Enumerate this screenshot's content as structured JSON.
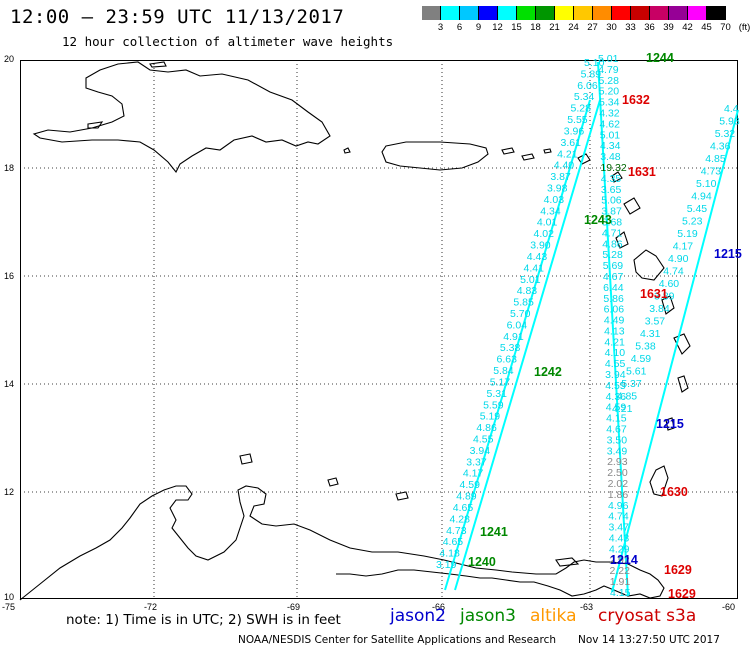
{
  "title": "12:00 – 23:59 UTC 11/13/2017",
  "subtitle": "12 hour collection of altimeter wave heights",
  "color_scale": {
    "labels": [
      "3",
      "6",
      "9",
      "12",
      "15",
      "18",
      "21",
      "24",
      "27",
      "30",
      "33",
      "36",
      "39",
      "42",
      "45",
      "70",
      "(ft)"
    ],
    "colors": [
      "#808080",
      "#00ffff",
      "#00c8ff",
      "#0000ff",
      "#00ffff",
      "#00e000",
      "#009600",
      "#ffff00",
      "#ffc800",
      "#ff8c00",
      "#ff0000",
      "#c80000",
      "#c80064",
      "#960096",
      "#ff00ff",
      "#000000"
    ]
  },
  "axes": {
    "lon_labels": [
      "-75",
      "-72",
      "-69",
      "-66",
      "-63",
      "-60"
    ],
    "lat_labels": [
      "20",
      "18",
      "16",
      "14",
      "12",
      "10"
    ]
  },
  "passes": [
    {
      "label": "1244",
      "color": "#008800"
    },
    {
      "label": "1632",
      "color": "#dd0000"
    },
    {
      "label": "1631",
      "color": "#dd0000"
    },
    {
      "label": "1243",
      "color": "#008800"
    },
    {
      "label": "1215",
      "color": "#0000cc"
    },
    {
      "label": "1631",
      "color": "#dd0000"
    },
    {
      "label": "1242",
      "color": "#008800"
    },
    {
      "label": "1215",
      "color": "#0000cc"
    },
    {
      "label": "1630",
      "color": "#dd0000"
    },
    {
      "label": "1241",
      "color": "#008800"
    },
    {
      "label": "1240",
      "color": "#008800"
    },
    {
      "label": "1214",
      "color": "#0000cc"
    },
    {
      "label": "1629",
      "color": "#dd0000"
    },
    {
      "label": "1629",
      "color": "#dd0000"
    }
  ],
  "tracks": {
    "left_ascending": [
      "5.10",
      "5.89",
      "6.06",
      "5.34",
      "5.28",
      "5.55",
      "3.96",
      "3.61",
      "4.21",
      "4.40",
      "3.87",
      "3.98",
      "4.03",
      "4.34",
      "4.01",
      "4.02",
      "3.90",
      "4.43",
      "4.41",
      "5.01",
      "4.83",
      "5.85",
      "5.70",
      "6.04",
      "4.91",
      "5.38",
      "6.63",
      "5.84",
      "5.17",
      "5.31",
      "5.59",
      "5.19",
      "4.86",
      "4.55",
      "3.94",
      "3.37",
      "4.17",
      "4.59",
      "4.89",
      "4.65",
      "4.28",
      "4.73",
      "4.65",
      "4.18",
      "3.19"
    ],
    "middle": [
      "5.01",
      "4.79",
      "5.28",
      "5.20",
      "5.34",
      "4.32",
      "4.62",
      "5.01",
      "4.34",
      "3.48",
      "19.32",
      "4.35",
      "3.65",
      "5.06",
      "3.87",
      "3.68",
      "4.71",
      "4.86",
      "5.28",
      "5.69",
      "4.67",
      "6.44",
      "5.86",
      "6.06",
      "4.49",
      "4.13",
      "4.21",
      "4.10",
      "4.55",
      "3.94",
      "4.55",
      "4.36",
      "4.59",
      "4.15",
      "4.67",
      "3.50",
      "3.49",
      "2.93",
      "2.50",
      "2.02",
      "1.86",
      "4.96",
      "4.74",
      "3.47",
      "4.43",
      "4.29",
      "2.92",
      "2.22",
      "1.91",
      "4.15"
    ],
    "right_descending": [
      "4.4",
      "5.93",
      "5.32",
      "4.36",
      "4.85",
      "4.73",
      "5.10",
      "4.94",
      "5.45",
      "5.23",
      "5.19",
      "4.17",
      "4.90",
      "4.74",
      "4.60",
      "3.89",
      "3.84",
      "3.57",
      "4.31",
      "5.38",
      "4.59",
      "5.61",
      "5.37",
      "4.85",
      "4.21"
    ]
  },
  "note": "note: 1) Time is in UTC; 2) SWH is in feet",
  "legend": [
    {
      "label": "jason2",
      "color": "#0000cc"
    },
    {
      "label": "jason3",
      "color": "#008800"
    },
    {
      "label": "altika",
      "color": "#ff9900"
    },
    {
      "label": "cryosat s3a",
      "color": "#cc0000"
    }
  ],
  "credit": "NOAA/NESDIS Center for Satellite Applications and Research",
  "timestamp": "Nov 14 13:27:50 UTC 2017"
}
